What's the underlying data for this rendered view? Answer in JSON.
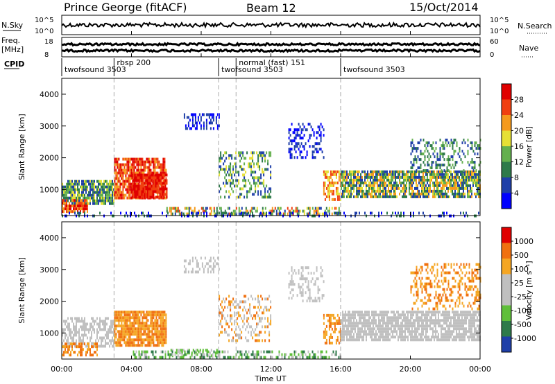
{
  "header": {
    "station": "Prince George (fitACF)",
    "beam": "Beam 12",
    "date": "15/Oct/2014"
  },
  "left_labels": {
    "nsky": "N.Sky",
    "freq": "Freq.",
    "freq_unit": "[MHz]",
    "cpid": "CPID"
  },
  "right_labels": {
    "nsearch": "N.Search",
    "nave": "Nave"
  },
  "nsky_axis": {
    "top": "10^5",
    "bottom": "10^0"
  },
  "freq_axis": {
    "left_top": "18",
    "left_bottom": "8",
    "right_top": "60",
    "right_bottom": "0"
  },
  "chart_data": {
    "type": "heatmap",
    "x_label": "Time UT",
    "x_ticks": [
      "00:00",
      "04:00",
      "08:00",
      "12:00",
      "16:00",
      "20:00",
      "00:00"
    ],
    "x_range_hours": [
      0,
      24
    ],
    "cpid_segments": [
      {
        "label": "twofsound 3503",
        "start": 0.0
      },
      {
        "label": "rbsp 200",
        "start": 3.0
      },
      {
        "label": "twofsound 3503",
        "start": 9.0
      },
      {
        "label": "normal (fast) 151",
        "start": 10.0
      },
      {
        "label": "twofsound 3503",
        "start": 16.0
      }
    ],
    "mode_change_hours": [
      3.0,
      9.0,
      10.0,
      16.0
    ],
    "panels": [
      {
        "id": "power",
        "ylabel": "Slant Range [km]",
        "y_ticks": [
          "1000",
          "2000",
          "3000",
          "4000"
        ],
        "y_values": [
          1000,
          2000,
          3000,
          4000
        ],
        "y_range_km": [
          180,
          4500
        ],
        "colorbar_label": "Power [dB]",
        "colorbar_ticks": [
          "28",
          "24",
          "20",
          "16",
          "12",
          "8",
          "4"
        ],
        "colorbar_colors": [
          "#0000ff",
          "#1f3fa8",
          "#2e7a4a",
          "#64b04e",
          "#e6e035",
          "#f59a1d",
          "#f04010",
          "#e00000"
        ]
      },
      {
        "id": "velocity",
        "ylabel": "Slant Range [km]",
        "y_ticks": [
          "1000",
          "2000",
          "3000",
          "4000"
        ],
        "y_values": [
          1000,
          2000,
          3000,
          4000
        ],
        "y_range_km": [
          180,
          4500
        ],
        "colorbar_label": "Velocity [m s⁻¹]",
        "colorbar_ticks": [
          "1000",
          "500",
          "100",
          "25",
          "-25",
          "-100",
          "-500",
          "-1000"
        ],
        "colorbar_colors": [
          "#1f3fa8",
          "#2e7a4a",
          "#5fbf3a",
          "#c0c0c0",
          "#c0c0c0",
          "#f5a623",
          "#f07010",
          "#e00000"
        ]
      }
    ]
  }
}
